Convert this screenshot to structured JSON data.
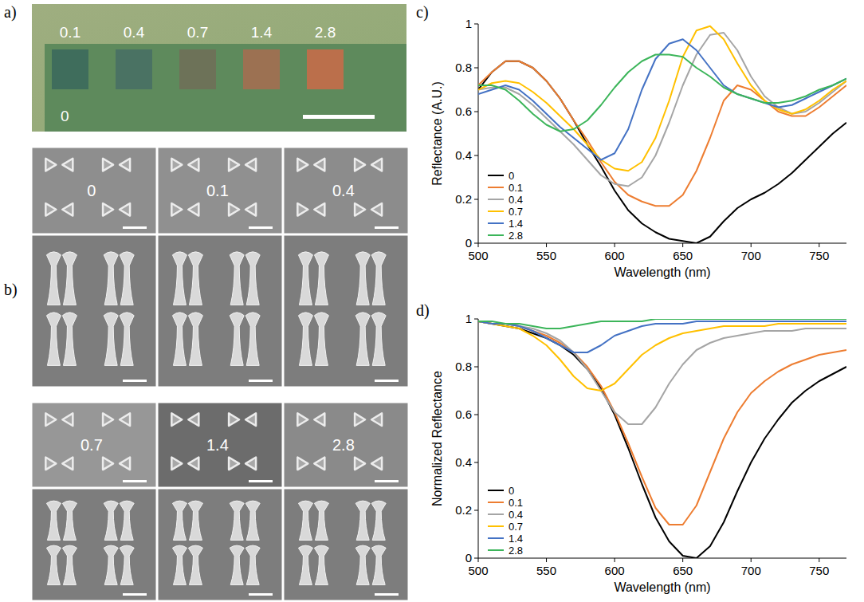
{
  "photo": {
    "letter": "a)",
    "sample_labels": [
      "0.1",
      "0.4",
      "0.7",
      "1.4",
      "2.8"
    ],
    "sample_colors": [
      "#3f6d5c",
      "#4a7263",
      "#6d7258",
      "#9c7152",
      "#bb6f4b"
    ],
    "background_label": "0"
  },
  "sem": {
    "letter": "b)",
    "labels": [
      "0",
      "0.1",
      "0.4",
      "0.7",
      "1.4",
      "2.8"
    ]
  },
  "chart_data": [
    {
      "letter": "c)",
      "type": "line",
      "xlabel": "Wavelength (nm)",
      "ylabel": "Reflectance (A.U.)",
      "x": [
        500,
        510,
        520,
        530,
        540,
        550,
        560,
        570,
        580,
        590,
        600,
        610,
        620,
        630,
        640,
        650,
        660,
        670,
        680,
        690,
        700,
        710,
        720,
        730,
        740,
        750,
        760,
        770
      ],
      "xlim": [
        500,
        770
      ],
      "ylim": [
        0,
        1
      ],
      "xticks": [
        500,
        550,
        600,
        650,
        700,
        750
      ],
      "yticks": [
        0,
        0.2,
        0.4,
        0.6,
        0.8,
        1
      ],
      "legend": "lower left",
      "series": [
        {
          "name": "0",
          "color": "#000000",
          "values": [
            0.7,
            0.78,
            0.83,
            0.83,
            0.8,
            0.74,
            0.66,
            0.56,
            0.45,
            0.35,
            0.24,
            0.15,
            0.09,
            0.05,
            0.02,
            0.01,
            0.0,
            0.03,
            0.1,
            0.16,
            0.2,
            0.23,
            0.27,
            0.32,
            0.38,
            0.44,
            0.5,
            0.55
          ]
        },
        {
          "name": "0.1",
          "color": "#ed7d31",
          "values": [
            0.72,
            0.78,
            0.83,
            0.83,
            0.8,
            0.74,
            0.66,
            0.56,
            0.47,
            0.37,
            0.28,
            0.22,
            0.19,
            0.17,
            0.17,
            0.22,
            0.33,
            0.48,
            0.65,
            0.72,
            0.7,
            0.65,
            0.6,
            0.58,
            0.58,
            0.62,
            0.67,
            0.72
          ]
        },
        {
          "name": "0.4",
          "color": "#a5a5a5",
          "values": [
            0.7,
            0.71,
            0.71,
            0.68,
            0.63,
            0.57,
            0.51,
            0.45,
            0.38,
            0.31,
            0.27,
            0.26,
            0.3,
            0.4,
            0.55,
            0.72,
            0.86,
            0.95,
            0.96,
            0.88,
            0.76,
            0.67,
            0.62,
            0.59,
            0.6,
            0.64,
            0.69,
            0.74
          ]
        },
        {
          "name": "0.7",
          "color": "#ffc000",
          "values": [
            0.7,
            0.73,
            0.74,
            0.73,
            0.69,
            0.64,
            0.58,
            0.52,
            0.45,
            0.38,
            0.34,
            0.33,
            0.37,
            0.48,
            0.65,
            0.85,
            0.97,
            0.99,
            0.93,
            0.82,
            0.72,
            0.65,
            0.61,
            0.59,
            0.61,
            0.65,
            0.7,
            0.74
          ]
        },
        {
          "name": "1.4",
          "color": "#4472c4",
          "values": [
            0.68,
            0.7,
            0.72,
            0.7,
            0.65,
            0.59,
            0.53,
            0.48,
            0.43,
            0.38,
            0.41,
            0.52,
            0.7,
            0.84,
            0.91,
            0.93,
            0.88,
            0.8,
            0.72,
            0.68,
            0.66,
            0.64,
            0.62,
            0.63,
            0.66,
            0.69,
            0.72,
            0.75
          ]
        },
        {
          "name": "2.8",
          "color": "#3cb55a",
          "values": [
            0.72,
            0.72,
            0.7,
            0.65,
            0.59,
            0.54,
            0.51,
            0.52,
            0.56,
            0.63,
            0.71,
            0.78,
            0.83,
            0.86,
            0.86,
            0.85,
            0.8,
            0.76,
            0.71,
            0.68,
            0.66,
            0.64,
            0.64,
            0.65,
            0.67,
            0.7,
            0.72,
            0.75
          ]
        }
      ]
    },
    {
      "letter": "d)",
      "type": "line",
      "xlabel": "Wavelength (nm)",
      "ylabel": "Normalized Reflectance",
      "x": [
        500,
        510,
        520,
        530,
        540,
        550,
        560,
        570,
        580,
        590,
        600,
        610,
        620,
        630,
        640,
        650,
        660,
        670,
        680,
        690,
        700,
        710,
        720,
        730,
        740,
        750,
        760,
        770
      ],
      "xlim": [
        500,
        770
      ],
      "ylim": [
        0,
        1
      ],
      "xticks": [
        500,
        550,
        600,
        650,
        700,
        750
      ],
      "yticks": [
        0,
        0.2,
        0.4,
        0.6,
        0.8,
        1
      ],
      "legend": "lower left",
      "series": [
        {
          "name": "0",
          "color": "#000000",
          "values": [
            0.99,
            0.98,
            0.97,
            0.96,
            0.94,
            0.92,
            0.89,
            0.85,
            0.79,
            0.71,
            0.6,
            0.46,
            0.31,
            0.17,
            0.07,
            0.01,
            0.0,
            0.05,
            0.15,
            0.28,
            0.4,
            0.5,
            0.58,
            0.65,
            0.7,
            0.74,
            0.77,
            0.8
          ]
        },
        {
          "name": "0.1",
          "color": "#ed7d31",
          "values": [
            0.99,
            0.98,
            0.98,
            0.97,
            0.95,
            0.93,
            0.9,
            0.86,
            0.8,
            0.72,
            0.61,
            0.48,
            0.34,
            0.21,
            0.14,
            0.14,
            0.22,
            0.36,
            0.5,
            0.61,
            0.69,
            0.74,
            0.78,
            0.81,
            0.83,
            0.85,
            0.86,
            0.87
          ]
        },
        {
          "name": "0.4",
          "color": "#a5a5a5",
          "values": [
            0.99,
            0.98,
            0.98,
            0.97,
            0.96,
            0.94,
            0.91,
            0.86,
            0.79,
            0.7,
            0.61,
            0.56,
            0.56,
            0.63,
            0.73,
            0.81,
            0.87,
            0.9,
            0.92,
            0.93,
            0.94,
            0.95,
            0.95,
            0.95,
            0.96,
            0.96,
            0.96,
            0.96
          ]
        },
        {
          "name": "0.7",
          "color": "#ffc000",
          "values": [
            0.99,
            0.98,
            0.97,
            0.96,
            0.93,
            0.89,
            0.83,
            0.76,
            0.71,
            0.7,
            0.73,
            0.79,
            0.85,
            0.89,
            0.92,
            0.94,
            0.95,
            0.96,
            0.97,
            0.97,
            0.97,
            0.97,
            0.98,
            0.98,
            0.98,
            0.98,
            0.98,
            0.98
          ]
        },
        {
          "name": "1.4",
          "color": "#4472c4",
          "values": [
            0.99,
            0.98,
            0.98,
            0.97,
            0.95,
            0.92,
            0.89,
            0.86,
            0.86,
            0.89,
            0.93,
            0.95,
            0.97,
            0.98,
            0.98,
            0.98,
            0.99,
            0.99,
            0.99,
            0.99,
            0.99,
            0.99,
            0.99,
            0.99,
            0.99,
            0.99,
            0.99,
            0.99
          ]
        },
        {
          "name": "2.8",
          "color": "#3cb55a",
          "values": [
            0.99,
            0.99,
            0.98,
            0.98,
            0.97,
            0.96,
            0.96,
            0.97,
            0.98,
            0.99,
            0.99,
            0.99,
            0.99,
            1.0,
            1.0,
            1.0,
            1.0,
            1.0,
            1.0,
            1.0,
            1.0,
            1.0,
            1.0,
            1.0,
            1.0,
            1.0,
            1.0,
            1.0
          ]
        }
      ]
    }
  ]
}
